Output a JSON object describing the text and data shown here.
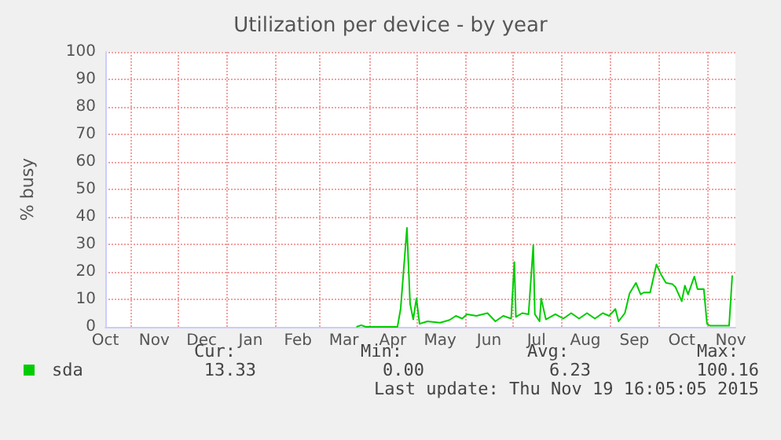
{
  "chart_data": {
    "type": "line",
    "title": "Utilization per device - by year",
    "ylabel": "% busy",
    "x": [
      "2015-03-24",
      "2015-03-27",
      "2015-03-30",
      "2015-04-19",
      "2015-04-21",
      "2015-04-25",
      "2015-04-27",
      "2015-04-29",
      "2015-05-01",
      "2015-05-03",
      "2015-05-08",
      "2015-05-16",
      "2015-05-22",
      "2015-05-26",
      "2015-05-30",
      "2015-06-02",
      "2015-06-08",
      "2015-06-15",
      "2015-06-20",
      "2015-06-25",
      "2015-06-30",
      "2015-07-02",
      "2015-07-03",
      "2015-07-07",
      "2015-07-11",
      "2015-07-14",
      "2015-07-15",
      "2015-07-18",
      "2015-07-19",
      "2015-07-22",
      "2015-07-28",
      "2015-08-02",
      "2015-08-07",
      "2015-08-12",
      "2015-08-17",
      "2015-08-22",
      "2015-08-27",
      "2015-08-31",
      "2015-09-04",
      "2015-09-06",
      "2015-09-10",
      "2015-09-13",
      "2015-09-17",
      "2015-09-20",
      "2015-09-22",
      "2015-09-26",
      "2015-09-30",
      "2015-10-03",
      "2015-10-06",
      "2015-10-10",
      "2015-10-12",
      "2015-10-16",
      "2015-10-18",
      "2015-10-20",
      "2015-10-24",
      "2015-10-26",
      "2015-10-30",
      "2015-11-01",
      "2015-11-03",
      "2015-11-15",
      "2015-11-17"
    ],
    "series": [
      {
        "name": "sda",
        "color": "#00cc00",
        "values": [
          0,
          0.6,
          0,
          0,
          6.5,
          36,
          8.4,
          2.7,
          10.3,
          1.1,
          2,
          1.5,
          2.5,
          4,
          3,
          4.6,
          4,
          5,
          2,
          4,
          3,
          23.6,
          3.6,
          5,
          4.6,
          29.7,
          4.6,
          2,
          10.3,
          2.7,
          4.6,
          3,
          5,
          3,
          5,
          3,
          5,
          4,
          6.5,
          2,
          5,
          12.2,
          16,
          11.8,
          12.5,
          12.5,
          22.7,
          18.9,
          16,
          15.6,
          14.5,
          9.3,
          15,
          11.8,
          18.3,
          13.7,
          13.7,
          1.1,
          0.4,
          0.4,
          18.7
        ]
      }
    ],
    "xlim": [
      "2014-10-16",
      "2015-11-19"
    ],
    "xticks": [
      {
        "value": "2014-10-16",
        "label": "Oct"
      },
      {
        "value": "2014-11-16",
        "label": "Nov"
      },
      {
        "value": "2014-12-16",
        "label": "Dec"
      },
      {
        "value": "2015-01-16",
        "label": "Jan"
      },
      {
        "value": "2015-02-15",
        "label": "Feb"
      },
      {
        "value": "2015-03-16",
        "label": "Mar"
      },
      {
        "value": "2015-04-16",
        "label": "Apr"
      },
      {
        "value": "2015-05-16",
        "label": "May"
      },
      {
        "value": "2015-06-16",
        "label": "Jun"
      },
      {
        "value": "2015-07-16",
        "label": "Jul"
      },
      {
        "value": "2015-08-16",
        "label": "Aug"
      },
      {
        "value": "2015-09-16",
        "label": "Sep"
      },
      {
        "value": "2015-10-16",
        "label": "Oct"
      },
      {
        "value": "2015-11-16",
        "label": "Nov"
      },
      {
        "value": "2014-11-01",
        "label": null
      },
      {
        "value": "2014-12-01",
        "label": null
      },
      {
        "value": "2015-01-01",
        "label": null
      },
      {
        "value": "2015-02-01",
        "label": null
      },
      {
        "value": "2015-03-01",
        "label": null
      },
      {
        "value": "2015-04-01",
        "label": null
      },
      {
        "value": "2015-05-01",
        "label": null
      },
      {
        "value": "2015-06-01",
        "label": null
      },
      {
        "value": "2015-07-01",
        "label": null
      },
      {
        "value": "2015-08-01",
        "label": null
      },
      {
        "value": "2015-09-01",
        "label": null
      },
      {
        "value": "2015-10-01",
        "label": null
      },
      {
        "value": "2015-11-01",
        "label": null
      }
    ],
    "ylim": [
      0,
      100
    ],
    "yticks": [
      0,
      10,
      20,
      30,
      40,
      50,
      60,
      70,
      80,
      90,
      100
    ],
    "grid": true,
    "legend": "bottom left",
    "marker": "none",
    "line_style": "solid",
    "annotations": [
      "Cur:",
      "Min:",
      "Avg:",
      "Max:",
      "13.33",
      "0.00",
      "6.23",
      "100.16",
      "Last update: Thu Nov 19 16:05:05 2015"
    ]
  }
}
